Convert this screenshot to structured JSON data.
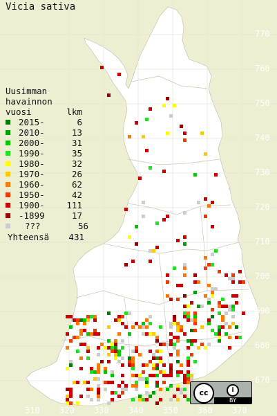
{
  "title": "Vicia sativa",
  "legend": {
    "heading": [
      "Uusimman",
      "havainnon",
      "vuosi"
    ],
    "count_heading": "lkm",
    "rows": [
      {
        "label": "2015-",
        "count": "6",
        "color": "#007a00"
      },
      {
        "label": "2010-",
        "count": "13",
        "color": "#00a000"
      },
      {
        "label": "2000-",
        "count": "31",
        "color": "#00c800"
      },
      {
        "label": "1990-",
        "count": "35",
        "color": "#22e022"
      },
      {
        "label": "1980-",
        "count": "32",
        "color": "#ffff00"
      },
      {
        "label": "1970-",
        "count": "26",
        "color": "#ffc800"
      },
      {
        "label": "1960-",
        "count": "62",
        "color": "#ff7800"
      },
      {
        "label": "1950-",
        "count": "42",
        "color": "#ee3a00"
      },
      {
        "label": "1900-",
        "count": "111",
        "color": "#cc0000"
      },
      {
        "label": "-1899",
        "count": "17",
        "color": "#990000"
      },
      {
        "label": "???",
        "count": "56",
        "color": "#cccccc"
      }
    ],
    "total_label": "Yhteensä",
    "total_count": "431"
  },
  "axes": {
    "y_labels": [
      "770",
      "760",
      "750",
      "740",
      "730",
      "720",
      "710",
      "700",
      "690",
      "680",
      "670"
    ],
    "x_labels": [
      "310",
      "320",
      "330",
      "340",
      "350",
      "360",
      "370"
    ]
  },
  "license": {
    "badge": "cc",
    "by_icon": "person-icon",
    "text": "BY"
  },
  "colors": {
    "background": "#eeeed2",
    "land": "#ffffff",
    "grid": "#d8d8c0",
    "labels": "#ffffff"
  }
}
